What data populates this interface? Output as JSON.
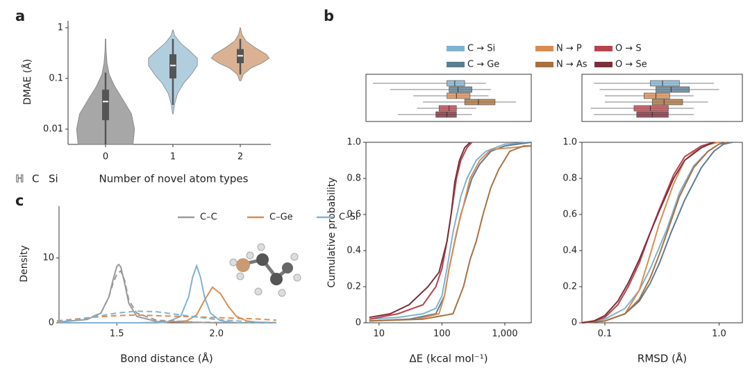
{
  "chart_data": [
    {
      "type": "violin",
      "panel": "a",
      "ylabel": "DMAE (Å)",
      "xlabel": "Number of novel atom types",
      "categories": [
        "0",
        "1",
        "2"
      ],
      "log_y": true,
      "ylim": [
        0.005,
        1.37
      ],
      "yticks": [
        0.01,
        0.1,
        1
      ],
      "atom_labels": [
        {
          "text": "ℍ",
          "color": "#9a9a9a"
        },
        {
          "text": "C",
          "color": "#9a9a9a"
        },
        {
          "text": "Si",
          "color": "#d6b49a"
        }
      ],
      "violins": [
        {
          "color": "#9e9e9e",
          "y": [
            0.005,
            0.01,
            0.02,
            0.04,
            0.07,
            0.12,
            0.2,
            0.35,
            0.6
          ],
          "width": [
            0.9,
            0.95,
            0.85,
            0.55,
            0.3,
            0.12,
            0.05,
            0.02,
            0.01
          ],
          "whislo": 0.005,
          "q1": 0.015,
          "med": 0.035,
          "q3": 0.06,
          "whishi": 0.13
        },
        {
          "color": "#a9c9dc",
          "y": [
            0.02,
            0.03,
            0.05,
            0.08,
            0.12,
            0.18,
            0.25,
            0.35,
            0.5,
            0.7,
            0.9
          ],
          "width": [
            0.01,
            0.05,
            0.15,
            0.35,
            0.6,
            0.8,
            0.8,
            0.55,
            0.25,
            0.06,
            0.01
          ],
          "whislo": 0.03,
          "q1": 0.1,
          "med": 0.18,
          "q3": 0.3,
          "whishi": 0.6
        },
        {
          "color": "#d6aa88",
          "y": [
            0.09,
            0.12,
            0.16,
            0.2,
            0.25,
            0.3,
            0.4,
            0.55,
            0.75,
            1.0
          ],
          "width": [
            0.02,
            0.1,
            0.35,
            0.7,
            0.95,
            0.85,
            0.5,
            0.18,
            0.05,
            0.01
          ],
          "whislo": 0.12,
          "q1": 0.2,
          "med": 0.28,
          "q3": 0.38,
          "whishi": 0.6
        }
      ]
    },
    {
      "type": "cdf",
      "panel": "b",
      "ylabel": "Cumulative probability",
      "ylim": [
        0,
        1
      ],
      "yticks": [
        0,
        0.2,
        0.4,
        0.6,
        0.8,
        {
          "value": 1,
          "label": "1.0"
        }
      ],
      "series": [
        {
          "name": "C → Si",
          "color": "#7fb2d1"
        },
        {
          "name": "C → Ge",
          "color": "#5b7d92"
        },
        {
          "name": "N → P",
          "color": "#d98c52"
        },
        {
          "name": "N → As",
          "color": "#a8703f"
        },
        {
          "name": "O → S",
          "color": "#b8434e"
        },
        {
          "name": "O → Se",
          "color": "#7b2f3a"
        }
      ],
      "plots": [
        {
          "xlabel": "ΔE (kcal mol⁻¹)",
          "log_x": true,
          "xlim": [
            6.2,
            2630
          ],
          "xticks": [
            10,
            100,
            {
              "value": 1000,
              "label": "1,000"
            }
          ],
          "curves": [
            {
              "x": [
                7,
                20,
                50,
                80,
                100,
                120,
                150,
                200,
                250,
                350,
                500,
                1000,
                2630
              ],
              "values": [
                0.02,
                0.03,
                0.05,
                0.08,
                0.15,
                0.3,
                0.5,
                0.7,
                0.8,
                0.9,
                0.95,
                0.99,
                1
              ]
            },
            {
              "x": [
                7,
                30,
                80,
                110,
                130,
                160,
                200,
                300,
                400,
                600,
                1000,
                2630
              ],
              "values": [
                0.01,
                0.02,
                0.05,
                0.15,
                0.3,
                0.45,
                0.6,
                0.8,
                0.88,
                0.95,
                0.98,
                1
              ]
            },
            {
              "x": [
                7,
                40,
                90,
                110,
                130,
                170,
                220,
                280,
                400,
                600,
                2630
              ],
              "values": [
                0.01,
                0.02,
                0.05,
                0.15,
                0.3,
                0.5,
                0.65,
                0.8,
                0.9,
                0.96,
                0.98
              ]
            },
            {
              "x": [
                7,
                50,
                150,
                220,
                280,
                350,
                450,
                600,
                800,
                1200,
                2000,
                2630
              ],
              "values": [
                0.01,
                0.02,
                0.05,
                0.2,
                0.35,
                0.45,
                0.6,
                0.75,
                0.85,
                0.95,
                0.98,
                0.98
              ]
            },
            {
              "x": [
                7,
                20,
                50,
                80,
                100,
                120,
                140,
                170,
                200,
                250,
                300
              ],
              "values": [
                0.02,
                0.05,
                0.1,
                0.2,
                0.3,
                0.45,
                0.6,
                0.8,
                0.9,
                0.97,
                1
              ]
            },
            {
              "x": [
                7,
                15,
                30,
                60,
                90,
                120,
                140,
                160,
                190,
                230,
                280
              ],
              "values": [
                0.03,
                0.05,
                0.1,
                0.2,
                0.28,
                0.45,
                0.6,
                0.78,
                0.9,
                0.97,
                1
              ]
            }
          ],
          "boxes": [
            {
              "whislo": 8,
              "q1": 120,
              "med": 160,
              "q3": 230,
              "whishi": 500
            },
            {
              "whislo": 15,
              "q1": 130,
              "med": 180,
              "q3": 300,
              "whishi": 600
            },
            {
              "whislo": 35,
              "q1": 120,
              "med": 170,
              "q3": 280,
              "whishi": 550
            },
            {
              "whislo": 50,
              "q1": 230,
              "med": 380,
              "q3": 700,
              "whishi": 1500
            },
            {
              "whislo": 40,
              "q1": 90,
              "med": 130,
              "q3": 170,
              "whishi": 350
            },
            {
              "whislo": 20,
              "q1": 80,
              "med": 120,
              "q3": 170,
              "whishi": 300
            }
          ]
        },
        {
          "xlabel": "RMSD (Å)",
          "log_x": true,
          "xlim": [
            0.063,
            1.6
          ],
          "xticks": [
            0.1,
            {
              "value": 1,
              "label": "1.0"
            }
          ],
          "curves": [
            {
              "x": [
                0.063,
                0.1,
                0.15,
                0.2,
                0.25,
                0.3,
                0.35,
                0.45,
                0.6,
                0.8,
                1.0,
                1.2
              ],
              "values": [
                0,
                0.02,
                0.08,
                0.18,
                0.3,
                0.42,
                0.52,
                0.72,
                0.87,
                0.95,
                0.99,
                1
              ]
            },
            {
              "x": [
                0.063,
                0.1,
                0.15,
                0.2,
                0.25,
                0.3,
                0.38,
                0.5,
                0.7,
                0.9,
                1.1,
                1.3
              ],
              "values": [
                0,
                0.01,
                0.05,
                0.12,
                0.22,
                0.33,
                0.5,
                0.68,
                0.86,
                0.95,
                0.99,
                1
              ]
            },
            {
              "x": [
                0.063,
                0.1,
                0.15,
                0.2,
                0.25,
                0.3,
                0.4,
                0.5,
                0.7,
                1.0
              ],
              "values": [
                0,
                0.01,
                0.05,
                0.18,
                0.38,
                0.55,
                0.77,
                0.9,
                0.98,
                1
              ]
            },
            {
              "x": [
                0.063,
                0.1,
                0.15,
                0.2,
                0.25,
                0.3,
                0.35,
                0.45,
                0.6,
                0.8,
                1.0,
                1.2
              ],
              "values": [
                0,
                0.01,
                0.05,
                0.13,
                0.25,
                0.38,
                0.5,
                0.7,
                0.86,
                0.95,
                0.99,
                1
              ]
            },
            {
              "x": [
                0.063,
                0.08,
                0.1,
                0.13,
                0.16,
                0.2,
                0.25,
                0.3,
                0.4,
                0.5,
                0.7,
                0.9
              ],
              "values": [
                0,
                0.01,
                0.03,
                0.1,
                0.2,
                0.33,
                0.5,
                0.63,
                0.82,
                0.92,
                0.98,
                1
              ]
            },
            {
              "x": [
                0.063,
                0.08,
                0.1,
                0.13,
                0.16,
                0.2,
                0.25,
                0.3,
                0.4,
                0.5,
                0.7,
                0.9
              ],
              "values": [
                0,
                0.01,
                0.04,
                0.12,
                0.22,
                0.35,
                0.5,
                0.62,
                0.8,
                0.9,
                0.97,
                1
              ]
            }
          ],
          "boxes": [
            {
              "whislo": 0.08,
              "q1": 0.25,
              "med": 0.32,
              "q3": 0.45,
              "whishi": 0.9
            },
            {
              "whislo": 0.09,
              "q1": 0.28,
              "med": 0.38,
              "q3": 0.55,
              "whishi": 1.0
            },
            {
              "whislo": 0.1,
              "q1": 0.22,
              "med": 0.28,
              "q3": 0.37,
              "whishi": 0.6
            },
            {
              "whislo": 0.1,
              "q1": 0.26,
              "med": 0.33,
              "q3": 0.48,
              "whishi": 0.8
            },
            {
              "whislo": 0.075,
              "q1": 0.18,
              "med": 0.25,
              "q3": 0.36,
              "whishi": 0.6
            },
            {
              "whislo": 0.08,
              "q1": 0.19,
              "med": 0.26,
              "q3": 0.36,
              "whishi": 0.6
            }
          ]
        }
      ]
    },
    {
      "type": "density",
      "panel": "c",
      "xlabel": "Bond distance (Å)",
      "ylabel": "Density",
      "xlim": [
        1.21,
        2.29
      ],
      "ylim": [
        0,
        18
      ],
      "xticks": [
        1.5,
        {
          "value": 2,
          "label": "2.0"
        }
      ],
      "yticks": [
        0,
        10
      ],
      "series": [
        {
          "name": "C–C",
          "color": "#9a9a9a",
          "x": [
            1.2,
            1.35,
            1.42,
            1.46,
            1.48,
            1.5,
            1.51,
            1.52,
            1.54,
            1.56,
            1.6,
            1.7,
            2.0,
            2.3
          ],
          "values": [
            0.1,
            0.5,
            1.5,
            4,
            6.5,
            8.7,
            9,
            8.6,
            6,
            3,
            1,
            0.2,
            0,
            0
          ]
        },
        {
          "name": "C–Ge",
          "color": "#d98c52",
          "x": [
            1.2,
            1.7,
            1.85,
            1.9,
            1.94,
            1.98,
            2.02,
            2.06,
            2.1,
            2.15,
            2.2,
            2.3
          ],
          "values": [
            0,
            0,
            0.3,
            1.2,
            3.5,
            5.5,
            4.5,
            2.5,
            1,
            0.3,
            0.1,
            0
          ]
        },
        {
          "name": "C–Si",
          "color": "#7fb2d1",
          "x": [
            1.2,
            1.6,
            1.75,
            1.82,
            1.86,
            1.88,
            1.9,
            1.92,
            1.94,
            1.97,
            2.02,
            2.1,
            2.3
          ],
          "values": [
            0,
            0,
            0.1,
            1,
            4,
            7,
            8.8,
            7,
            4,
            1.5,
            0.3,
            0,
            0
          ]
        },
        {
          "color": "#9a9a9a",
          "dashed": true,
          "x": [
            1.2,
            1.35,
            1.42,
            1.46,
            1.48,
            1.5,
            1.52,
            1.54,
            1.56,
            1.6,
            1.7,
            1.9,
            2.1,
            2.3
          ],
          "values": [
            0.1,
            0.6,
            1.5,
            4,
            6,
            7.5,
            8,
            6.5,
            3.5,
            1.5,
            0.4,
            0.1,
            0,
            0
          ]
        },
        {
          "color": "#d98c52",
          "dashed": true,
          "x": [
            1.2,
            1.3,
            1.4,
            1.5,
            1.6,
            1.7,
            1.8,
            1.9,
            2.0,
            2.1,
            2.2,
            2.3
          ],
          "values": [
            0.3,
            0.6,
            0.9,
            1.1,
            1.2,
            1.1,
            1.0,
            0.9,
            0.8,
            0.7,
            0.6,
            0.4
          ]
        },
        {
          "color": "#7fb2d1",
          "dashed": true,
          "x": [
            1.2,
            1.3,
            1.4,
            1.5,
            1.6,
            1.7,
            1.8,
            1.9,
            2.0,
            2.1,
            2.2,
            2.3
          ],
          "values": [
            0.2,
            0.5,
            1.0,
            1.5,
            1.8,
            1.7,
            1.3,
            0.9,
            0.5,
            0.3,
            0.1,
            0.05
          ]
        }
      ]
    }
  ]
}
